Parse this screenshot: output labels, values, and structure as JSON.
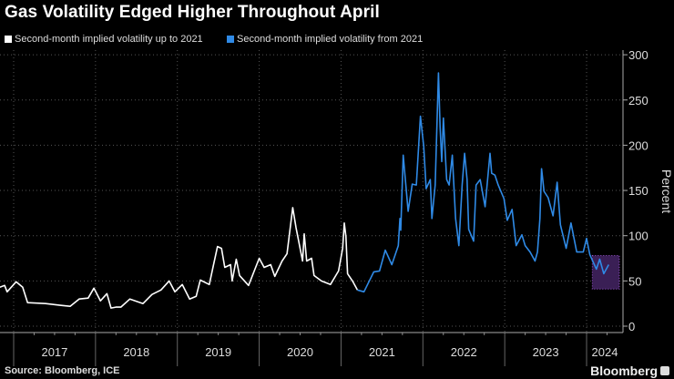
{
  "title": "Gas Volatility Edged Higher Throughout April",
  "source": "Source: Bloomberg, ICE",
  "brand": "Bloomberg",
  "colors": {
    "background": "#000000",
    "series_up_to_2021": "#ffffff",
    "series_from_2021": "#2f8ae6",
    "highlight_fill": "#3a1f55",
    "highlight_border": "#9a55d0",
    "grid": "#555555"
  },
  "chart_data": {
    "type": "line",
    "title": "Gas Volatility Edged Higher Throughout April",
    "xlabel": "",
    "ylabel": "Percent",
    "ylim": [
      0,
      300
    ],
    "xlim": [
      2016.83,
      2024.45
    ],
    "yticks": [
      0,
      50,
      100,
      150,
      200,
      250,
      300
    ],
    "xtick_labels": [
      "2017",
      "2018",
      "2019",
      "2020",
      "2021",
      "2022",
      "2023",
      "2024"
    ],
    "grid": true,
    "legend_position": "top-left",
    "highlight_box": {
      "x": [
        2024.07,
        2024.4
      ],
      "y": [
        41,
        78
      ]
    },
    "series": [
      {
        "name": "Second-month implied volatility up to 2021",
        "color": "#ffffff",
        "points": [
          [
            2016.83,
            43
          ],
          [
            2016.89,
            45
          ],
          [
            2016.92,
            38
          ],
          [
            2017.03,
            49
          ],
          [
            2017.11,
            43
          ],
          [
            2017.17,
            26
          ],
          [
            2017.39,
            25
          ],
          [
            2017.58,
            23
          ],
          [
            2017.69,
            22
          ],
          [
            2017.8,
            30
          ],
          [
            2017.91,
            31
          ],
          [
            2017.98,
            42
          ],
          [
            2018.06,
            28
          ],
          [
            2018.14,
            36
          ],
          [
            2018.19,
            20
          ],
          [
            2018.25,
            21
          ],
          [
            2018.31,
            21
          ],
          [
            2018.42,
            30
          ],
          [
            2018.58,
            25
          ],
          [
            2018.69,
            35
          ],
          [
            2018.8,
            40
          ],
          [
            2018.9,
            50
          ],
          [
            2018.97,
            38
          ],
          [
            2019.06,
            46
          ],
          [
            2019.15,
            30
          ],
          [
            2019.23,
            33
          ],
          [
            2019.28,
            51
          ],
          [
            2019.39,
            46
          ],
          [
            2019.43,
            63
          ],
          [
            2019.49,
            88
          ],
          [
            2019.54,
            86
          ],
          [
            2019.58,
            65
          ],
          [
            2019.65,
            68
          ],
          [
            2019.67,
            50
          ],
          [
            2019.72,
            74
          ],
          [
            2019.76,
            56
          ],
          [
            2019.87,
            45
          ],
          [
            2020.0,
            75
          ],
          [
            2020.06,
            65
          ],
          [
            2020.14,
            68
          ],
          [
            2020.19,
            55
          ],
          [
            2020.28,
            72
          ],
          [
            2020.34,
            80
          ],
          [
            2020.41,
            131
          ],
          [
            2020.45,
            109
          ],
          [
            2020.53,
            72
          ],
          [
            2020.55,
            102
          ],
          [
            2020.58,
            72
          ],
          [
            2020.64,
            75
          ],
          [
            2020.67,
            56
          ],
          [
            2020.76,
            50
          ],
          [
            2020.87,
            46
          ],
          [
            2020.97,
            61
          ],
          [
            2021.02,
            86
          ],
          [
            2021.04,
            114
          ],
          [
            2021.06,
            99
          ],
          [
            2021.08,
            58
          ],
          [
            2021.14,
            50
          ],
          [
            2021.2,
            40
          ]
        ]
      },
      {
        "name": "Second-month implied volatility from 2021",
        "color": "#2f8ae6",
        "points": [
          [
            2021.2,
            40
          ],
          [
            2021.28,
            38
          ],
          [
            2021.4,
            60
          ],
          [
            2021.47,
            61
          ],
          [
            2021.54,
            84
          ],
          [
            2021.62,
            68
          ],
          [
            2021.7,
            89
          ],
          [
            2021.72,
            119
          ],
          [
            2021.73,
            106
          ],
          [
            2021.76,
            189
          ],
          [
            2021.82,
            127
          ],
          [
            2021.87,
            157
          ],
          [
            2021.92,
            156
          ],
          [
            2021.97,
            232
          ],
          [
            2022.01,
            199
          ],
          [
            2022.04,
            152
          ],
          [
            2022.09,
            162
          ],
          [
            2022.11,
            119
          ],
          [
            2022.15,
            156
          ],
          [
            2022.19,
            280
          ],
          [
            2022.21,
            220
          ],
          [
            2022.23,
            182
          ],
          [
            2022.25,
            230
          ],
          [
            2022.29,
            162
          ],
          [
            2022.32,
            156
          ],
          [
            2022.36,
            189
          ],
          [
            2022.4,
            119
          ],
          [
            2022.44,
            89
          ],
          [
            2022.48,
            156
          ],
          [
            2022.51,
            191
          ],
          [
            2022.54,
            162
          ],
          [
            2022.56,
            107
          ],
          [
            2022.62,
            94
          ],
          [
            2022.65,
            156
          ],
          [
            2022.7,
            162
          ],
          [
            2022.76,
            132
          ],
          [
            2022.82,
            191
          ],
          [
            2022.84,
            169
          ],
          [
            2022.88,
            167
          ],
          [
            2022.92,
            156
          ],
          [
            2022.99,
            141
          ],
          [
            2023.03,
            117
          ],
          [
            2023.09,
            129
          ],
          [
            2023.14,
            89
          ],
          [
            2023.21,
            101
          ],
          [
            2023.25,
            89
          ],
          [
            2023.31,
            82
          ],
          [
            2023.37,
            72
          ],
          [
            2023.4,
            82
          ],
          [
            2023.43,
            119
          ],
          [
            2023.45,
            174
          ],
          [
            2023.48,
            149
          ],
          [
            2023.53,
            142
          ],
          [
            2023.59,
            122
          ],
          [
            2023.64,
            159
          ],
          [
            2023.68,
            112
          ],
          [
            2023.75,
            86
          ],
          [
            2023.81,
            114
          ],
          [
            2023.88,
            82
          ],
          [
            2023.96,
            82
          ],
          [
            2024.0,
            97
          ],
          [
            2024.04,
            79
          ],
          [
            2024.12,
            63
          ],
          [
            2024.16,
            74
          ],
          [
            2024.21,
            58
          ],
          [
            2024.27,
            68
          ]
        ]
      }
    ]
  }
}
